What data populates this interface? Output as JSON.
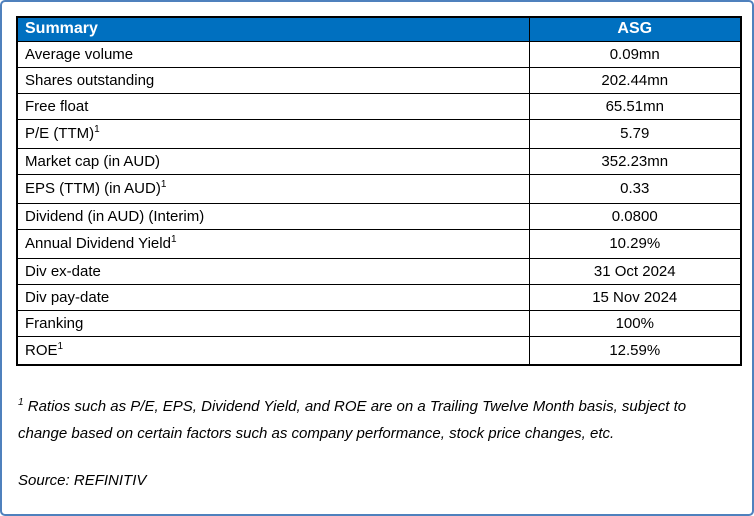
{
  "card": {
    "frame_border_color": "#4f81bd",
    "header_bg_color": "#0070c0",
    "header_text_color": "#ffffff",
    "grid_border_color": "#000000"
  },
  "table": {
    "header": {
      "label": "Summary",
      "ticker": "ASG"
    },
    "rows": [
      {
        "label": "Average volume",
        "value": "0.09mn"
      },
      {
        "label": "Shares outstanding",
        "value": "202.44mn"
      },
      {
        "label": "Free float",
        "value": "65.51mn"
      },
      {
        "label": "P/E (TTM)",
        "sup": "1",
        "value": "5.79"
      },
      {
        "label": "Market cap (in AUD)",
        "value": "352.23mn"
      },
      {
        "label": "EPS (TTM) (in AUD)",
        "sup": "1",
        "value": "0.33"
      },
      {
        "label": "Dividend (in AUD) (Interim)",
        "value": "0.0800"
      },
      {
        "label": "Annual Dividend Yield",
        "sup": "1",
        "value": "10.29%"
      },
      {
        "label": "Div ex-date",
        "value": "31 Oct 2024"
      },
      {
        "label": "Div pay-date",
        "value": "15 Nov 2024"
      },
      {
        "label": "Franking",
        "value": "100%"
      },
      {
        "label": "ROE",
        "sup": "1",
        "value": "12.59%"
      }
    ]
  },
  "footnote": {
    "sup": "1",
    "text": "Ratios such as P/E, EPS, Dividend Yield, and ROE are on a Trailing Twelve Month basis, subject to change based on certain factors such as company performance, stock price changes, etc."
  },
  "source": "Source: REFINITIV"
}
